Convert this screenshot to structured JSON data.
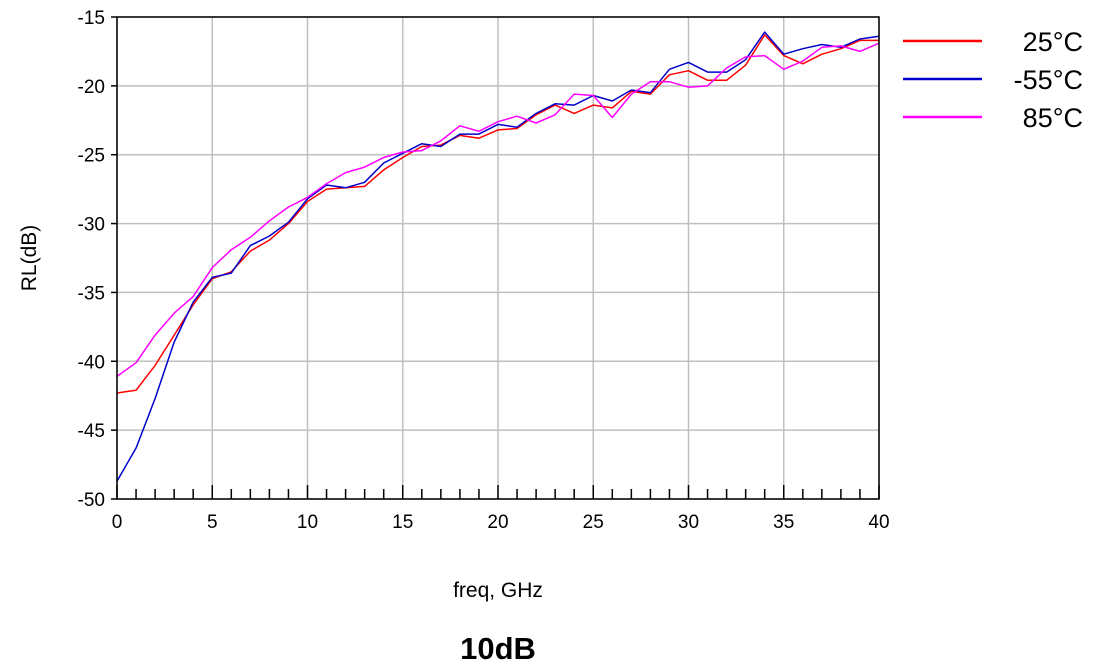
{
  "chart_data": {
    "type": "line",
    "xlabel": "freq, GHz",
    "ylabel": "RL(dB)",
    "caption": "10dB",
    "xlim": [
      0,
      40
    ],
    "ylim": [
      -50,
      -15
    ],
    "xticks": [
      0,
      5,
      10,
      15,
      20,
      25,
      30,
      35,
      40
    ],
    "yticks": [
      -15,
      -20,
      -25,
      -30,
      -35,
      -40,
      -45,
      -50
    ],
    "grid": true,
    "legend_position": "right-top",
    "x": [
      0,
      1,
      2,
      3,
      4,
      5,
      6,
      7,
      8,
      9,
      10,
      11,
      12,
      13,
      14,
      15,
      16,
      17,
      18,
      19,
      20,
      21,
      22,
      23,
      24,
      25,
      26,
      27,
      28,
      29,
      30,
      31,
      32,
      33,
      34,
      35,
      36,
      37,
      38,
      39,
      40
    ],
    "series": [
      {
        "name": "25°C",
        "color": "#ff0000",
        "values": [
          -42.3,
          -42.1,
          -40.3,
          -38.1,
          -35.9,
          -34.0,
          -33.5,
          -32.0,
          -31.2,
          -30.0,
          -28.4,
          -27.5,
          -27.4,
          -27.3,
          -26.1,
          -25.2,
          -24.4,
          -24.3,
          -23.6,
          -23.8,
          -23.2,
          -23.1,
          -22.1,
          -21.4,
          -22.0,
          -21.4,
          -21.6,
          -20.4,
          -20.6,
          -19.2,
          -18.9,
          -19.6,
          -19.6,
          -18.5,
          -16.3,
          -17.8,
          -18.4,
          -17.7,
          -17.3,
          -16.7,
          -16.7
        ]
      },
      {
        "name": "-55°C",
        "color": "#0000cc",
        "values": [
          -48.7,
          -46.3,
          -42.7,
          -38.6,
          -35.7,
          -33.9,
          -33.6,
          -31.6,
          -30.9,
          -29.9,
          -28.2,
          -27.2,
          -27.4,
          -27.0,
          -25.6,
          -24.9,
          -24.2,
          -24.4,
          -23.5,
          -23.5,
          -22.8,
          -23.0,
          -22.0,
          -21.3,
          -21.4,
          -20.7,
          -21.1,
          -20.3,
          -20.5,
          -18.8,
          -18.3,
          -19.0,
          -19.0,
          -18.1,
          -16.1,
          -17.7,
          -17.3,
          -17.0,
          -17.2,
          -16.6,
          -16.4
        ]
      },
      {
        "name": "85°C",
        "color": "#ff00ff",
        "values": [
          -41.1,
          -40.1,
          -38.1,
          -36.5,
          -35.3,
          -33.2,
          -31.9,
          -31.0,
          -29.8,
          -28.8,
          -28.1,
          -27.1,
          -26.3,
          -25.9,
          -25.2,
          -24.8,
          -24.7,
          -24.0,
          -22.9,
          -23.3,
          -22.6,
          -22.2,
          -22.7,
          -22.1,
          -20.6,
          -20.7,
          -22.3,
          -20.6,
          -19.7,
          -19.7,
          -20.1,
          -20.0,
          -18.7,
          -17.9,
          -17.8,
          -18.8,
          -18.2,
          -17.2,
          -17.1,
          -17.5,
          -16.9
        ]
      }
    ]
  }
}
